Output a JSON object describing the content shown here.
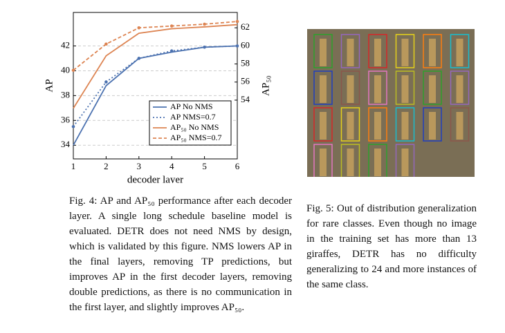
{
  "chart_data": {
    "type": "line",
    "x_label": "decoder layer",
    "y_label": "AP",
    "y2_label": "AP₅₀",
    "x": [
      1,
      2,
      3,
      4,
      5,
      6
    ],
    "xlim": [
      1,
      6
    ],
    "xticks": [
      1,
      2,
      3,
      4,
      5,
      6
    ],
    "ylim": [
      32.9,
      44.7
    ],
    "yticks": [
      34,
      36,
      38,
      40,
      42
    ],
    "y2lim": [
      47.5,
      63.7
    ],
    "y2ticks": [
      54,
      56,
      58,
      60,
      62
    ],
    "grid": true,
    "legend": "lower right",
    "series": [
      {
        "name": "AP No NMS",
        "color": "#4c72b0",
        "dash": "solid",
        "marker": false,
        "values": [
          34.0,
          38.8,
          41.0,
          41.5,
          41.9,
          42.0
        ]
      },
      {
        "name": "AP NMS=0.7",
        "color": "#4c72b0",
        "dash": "dotted",
        "marker": true,
        "values": [
          35.5,
          39.1,
          41.0,
          41.6,
          41.9,
          42.0
        ]
      },
      {
        "name": "AP₅₀ No NMS",
        "color": "#dd8452",
        "dash": "solid",
        "marker": false,
        "axis": "y2",
        "values": [
          53.1,
          58.9,
          61.4,
          61.9,
          62.1,
          62.35
        ]
      },
      {
        "name": "AP₅₀ NMS=0.7",
        "color": "#dd8452",
        "dash": "dashed",
        "marker": true,
        "axis": "y2",
        "values": [
          57.3,
          60.2,
          62.0,
          62.2,
          62.4,
          62.7
        ]
      }
    ]
  },
  "captions": {
    "fig4": "Fig. 4: AP and AP₅₀ performance after each decoder layer. A single long schedule baseline model is evaluated. DETR does not need NMS by design, which is validated by this figure. NMS lowers AP in the final layers, removing TP predictions, but improves AP in the first decoder layers, removing double predictions, as there is no communication in the first layer, and slightly improves AP₅₀.",
    "fig5": "Fig. 5: Out of distribution generalization for rare classes. Even though no image in the training set has more than 13 giraffes, DETR has no difficulty generalizing to 24 and more instances of the same class."
  }
}
